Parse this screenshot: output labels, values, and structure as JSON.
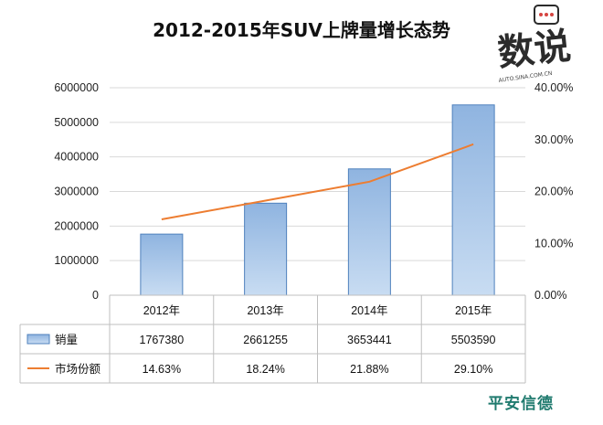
{
  "chart_data": {
    "type": "bar",
    "title": "2012-2015年SUV上牌量增长态势",
    "categories": [
      "2012年",
      "2013年",
      "2014年",
      "2015年"
    ],
    "series": [
      {
        "name": "销量",
        "type": "bar",
        "axis": "left",
        "values": [
          1767380,
          2661255,
          3653441,
          5503590
        ],
        "labels": [
          "1767380",
          "2661255",
          "3653441",
          "5503590"
        ],
        "color": "#9dc3e6"
      },
      {
        "name": "市场份额",
        "type": "line",
        "axis": "right",
        "values": [
          14.63,
          18.24,
          21.88,
          29.1
        ],
        "labels": [
          "14.63%",
          "18.24%",
          "21.88%",
          "29.10%"
        ],
        "color": "#ed7d31"
      }
    ],
    "y_left": {
      "min": 0,
      "max": 6000000,
      "ticks": [
        0,
        1000000,
        2000000,
        3000000,
        4000000,
        5000000,
        6000000
      ],
      "tick_labels": [
        "0",
        "1000000",
        "2000000",
        "3000000",
        "4000000",
        "5000000",
        "6000000"
      ]
    },
    "y_right": {
      "min": 0,
      "max": 40,
      "ticks": [
        0,
        10,
        20,
        30,
        40
      ],
      "tick_labels": [
        "0.00%",
        "10.00%",
        "20.00%",
        "30.00%",
        "40.00%"
      ]
    },
    "grid": true,
    "legend": "data-table-below"
  },
  "watermark": {
    "text": "数说",
    "sub": "AUTO.SINA.COM.CN"
  },
  "brand": {
    "text": "平安信德"
  }
}
